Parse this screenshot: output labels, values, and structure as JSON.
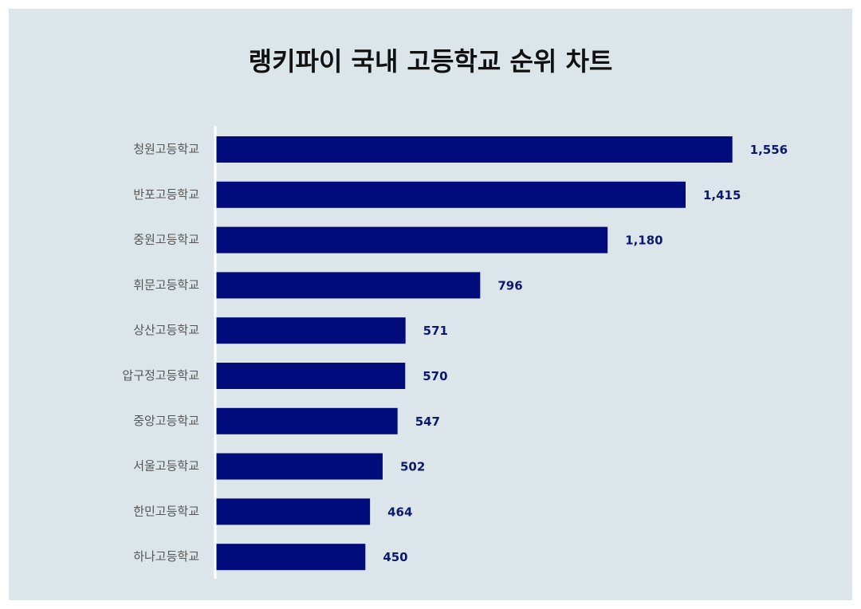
{
  "chart_data": {
    "type": "bar",
    "orientation": "horizontal",
    "title": "랭키파이 국내 고등학교 순위 차트",
    "categories": [
      "청원고등학교",
      "반포고등학교",
      "중원고등학교",
      "휘문고등학교",
      "상산고등학교",
      "압구정고등학교",
      "중앙고등학교",
      "서울고등학교",
      "한민고등학교",
      "하나고등학교"
    ],
    "values": [
      1556,
      1415,
      1180,
      796,
      571,
      570,
      547,
      502,
      464,
      450
    ],
    "value_labels": [
      "1,556",
      "1,415",
      "1,180",
      "796",
      "571",
      "570",
      "547",
      "502",
      "464",
      "450"
    ],
    "xlim": [
      0,
      1600
    ],
    "grid": false,
    "bar_color": "#000c7b",
    "label_color": "#0b1a6b",
    "background": "#dce6ea"
  }
}
